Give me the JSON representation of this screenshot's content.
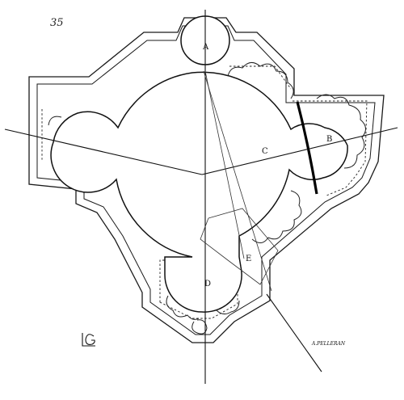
{
  "figure": {
    "plate_number": "35",
    "labels": {
      "a": "A",
      "b": "B",
      "c": "C",
      "d": "D",
      "e": "E"
    },
    "engraver": "A.PELLERAN",
    "monogram": "LG"
  }
}
